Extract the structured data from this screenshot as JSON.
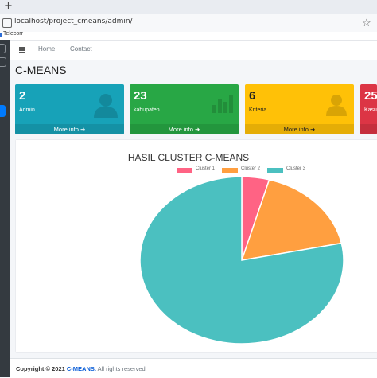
{
  "browser": {
    "new_tab_glyph": "+",
    "url": "localhost/project_cmeans/admin/",
    "bookmark_label": "Telecorr"
  },
  "navbar": {
    "links": [
      "Home",
      "Contact"
    ]
  },
  "page": {
    "title": "C-MEANS"
  },
  "boxes": [
    {
      "value": "2",
      "label": "Admin",
      "footer": "More info",
      "color": "#17a2b8",
      "icon": "user-icon"
    },
    {
      "value": "23",
      "label": "kabupaten",
      "footer": "More info",
      "color": "#28a745",
      "icon": "bar-chart-icon"
    },
    {
      "value": "6",
      "label": "Kriteria",
      "footer": "More info",
      "color": "#ffc107",
      "icon": "person-icon"
    },
    {
      "value": "25",
      "label": "Kasu",
      "footer": "",
      "color": "#dc3545",
      "icon": ""
    }
  ],
  "chart_data": {
    "type": "pie",
    "title": "HASIL CLUSTER C-MEANS",
    "labels": [
      "Cluster 1",
      "Cluster 2",
      "Cluster 3"
    ],
    "values": [
      1,
      4,
      18
    ],
    "colors": [
      "#ff6384",
      "#ff9f40",
      "#4bc0c0"
    ],
    "legend_position": "top"
  },
  "footer": {
    "prefix": "Copyright © 2021",
    "brand": "C-MEANS.",
    "suffix": "All rights reserved."
  }
}
